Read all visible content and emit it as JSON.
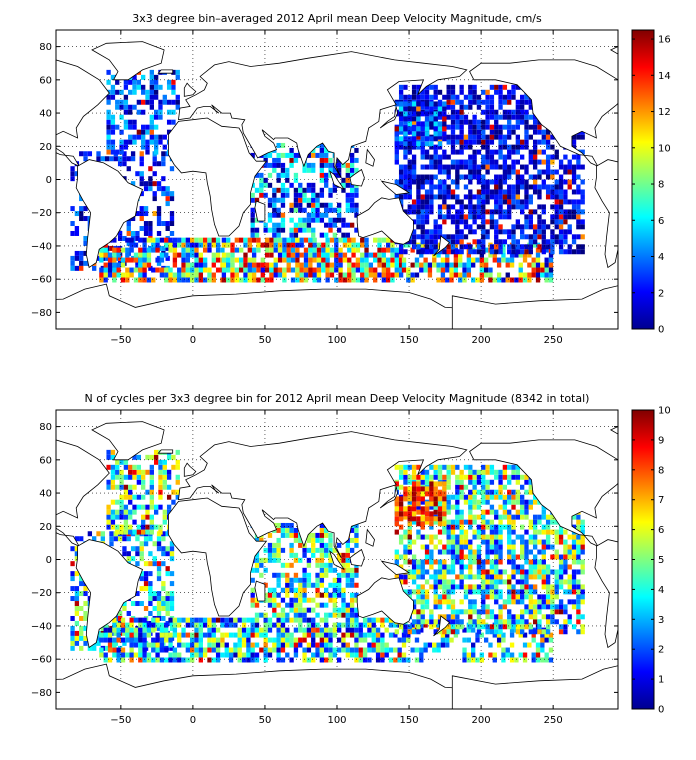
{
  "chart_data": [
    {
      "type": "heatmap",
      "title": "3x3 degree bin–averaged 2012 April mean Deep Velocity Magnitude, cm/s",
      "xlim": [
        -95,
        295
      ],
      "ylim": [
        -90,
        90
      ],
      "xticks": [
        -50,
        0,
        50,
        100,
        150,
        200,
        250
      ],
      "yticks": [
        -80,
        -60,
        -40,
        -20,
        0,
        20,
        40,
        60,
        80
      ],
      "colorbar": {
        "range": [
          0,
          16.5
        ],
        "ticks": [
          0,
          2,
          4,
          6,
          8,
          10,
          12,
          14,
          16
        ],
        "colormap": "jet"
      },
      "grid": "dotted",
      "palette": "velocity",
      "seed": 7,
      "regions": [
        {
          "lon": [
            -85,
            -15
          ],
          "lat": [
            -55,
            15
          ],
          "density": 0.5,
          "mean": 2.5,
          "spread": 2.5
        },
        {
          "lon": [
            -60,
            -10
          ],
          "lat": [
            15,
            65
          ],
          "density": 0.55,
          "mean": 3,
          "spread": 3
        },
        {
          "lon": [
            -65,
            25
          ],
          "lat": [
            -62,
            -35
          ],
          "density": 0.75,
          "mean": 8,
          "spread": 7
        },
        {
          "lon": [
            20,
            145
          ],
          "lat": [
            -62,
            -35
          ],
          "density": 0.8,
          "mean": 9,
          "spread": 7
        },
        {
          "lon": [
            145,
            250
          ],
          "lat": [
            -62,
            -40
          ],
          "density": 0.6,
          "mean": 7,
          "spread": 7
        },
        {
          "lon": [
            40,
            115
          ],
          "lat": [
            -35,
            20
          ],
          "density": 0.6,
          "mean": 4,
          "spread": 4
        },
        {
          "lon": [
            140,
            270
          ],
          "lat": [
            -45,
            55
          ],
          "density": 0.7,
          "mean": 1.8,
          "spread": 2
        },
        {
          "lon": [
            140,
            175
          ],
          "lat": [
            20,
            45
          ],
          "density": 0.8,
          "mean": 3,
          "spread": 3
        },
        {
          "lon": [
            -175,
            0
          ],
          "lat": [
            0,
            0
          ],
          "density": 0,
          "mean": 0,
          "spread": 0
        }
      ]
    },
    {
      "type": "heatmap",
      "title": "N of cycles per 3x3 degree bin for 2012 April mean Deep Velocity Magnitude (8342 in total)",
      "xlim": [
        -95,
        295
      ],
      "ylim": [
        -90,
        90
      ],
      "xticks": [
        -50,
        0,
        50,
        100,
        150,
        200,
        250
      ],
      "yticks": [
        -80,
        -60,
        -40,
        -20,
        0,
        20,
        40,
        60,
        80
      ],
      "colorbar": {
        "range": [
          0,
          10
        ],
        "ticks": [
          0,
          1,
          2,
          3,
          4,
          5,
          6,
          7,
          8,
          9,
          10
        ],
        "colormap": "jet"
      },
      "total_cycles": 8342,
      "grid": "dotted",
      "palette": "counts",
      "seed": 11,
      "regions": [
        {
          "lon": [
            -85,
            -15
          ],
          "lat": [
            -55,
            15
          ],
          "density": 0.55,
          "mean": 3.5,
          "spread": 3
        },
        {
          "lon": [
            -60,
            -10
          ],
          "lat": [
            15,
            65
          ],
          "density": 0.6,
          "mean": 4,
          "spread": 3
        },
        {
          "lon": [
            -65,
            145
          ],
          "lat": [
            -62,
            -35
          ],
          "density": 0.75,
          "mean": 3.5,
          "spread": 3
        },
        {
          "lon": [
            145,
            250
          ],
          "lat": [
            -62,
            -40
          ],
          "density": 0.55,
          "mean": 3.5,
          "spread": 3
        },
        {
          "lon": [
            40,
            115
          ],
          "lat": [
            -35,
            20
          ],
          "density": 0.6,
          "mean": 4,
          "spread": 3
        },
        {
          "lon": [
            140,
            270
          ],
          "lat": [
            -45,
            55
          ],
          "density": 0.7,
          "mean": 4,
          "spread": 3
        },
        {
          "lon": [
            140,
            175
          ],
          "lat": [
            20,
            45
          ],
          "density": 0.85,
          "mean": 8,
          "spread": 2
        }
      ]
    }
  ]
}
